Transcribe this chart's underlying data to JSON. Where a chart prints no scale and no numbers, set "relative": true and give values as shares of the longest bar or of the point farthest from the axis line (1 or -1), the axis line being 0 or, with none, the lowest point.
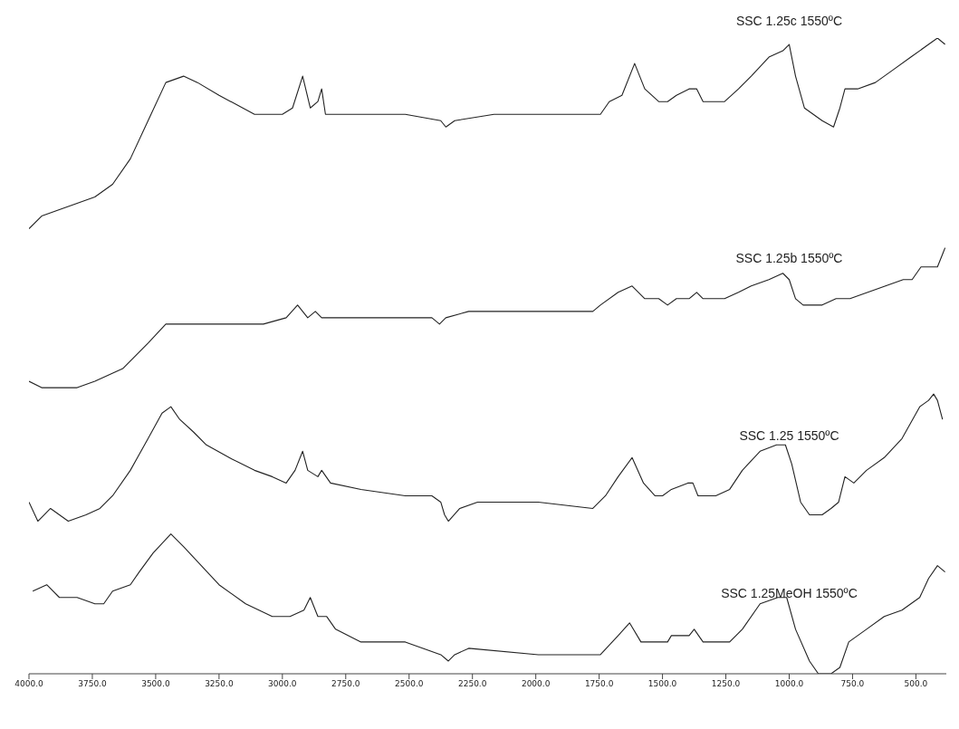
{
  "chart_data": {
    "type": "line",
    "relative": true,
    "xlim": [
      4000,
      380
    ],
    "xticks": [
      {
        "value": 4000,
        "label": "4000.0"
      },
      {
        "value": 3750,
        "label": "3750.0"
      },
      {
        "value": 3500,
        "label": "3500.0"
      },
      {
        "value": 3250,
        "label": "3250.0"
      },
      {
        "value": 3000,
        "label": "3000.0"
      },
      {
        "value": 2750,
        "label": "2750.0"
      },
      {
        "value": 2500,
        "label": "2500.0"
      },
      {
        "value": 2250,
        "label": "2250.0"
      },
      {
        "value": 2000,
        "label": "2000.0"
      },
      {
        "value": 1750,
        "label": "1750.0"
      },
      {
        "value": 1500,
        "label": "1500.0"
      },
      {
        "value": 1250,
        "label": "1250.0"
      },
      {
        "value": 1000,
        "label": "1000.0"
      },
      {
        "value": 750,
        "label": "750.0"
      },
      {
        "value": 500,
        "label": "500.0"
      }
    ],
    "marker": "none",
    "line_style": "solid",
    "tick_labels": "x",
    "series": [
      {
        "name": "SSC 1.25c 1550ºC",
        "color": "#222222",
        "x": [
          4000,
          3950,
          3880,
          3810,
          3740,
          3670,
          3600,
          3530,
          3460,
          3390,
          3335,
          3250,
          3110,
          3000,
          2960,
          2920,
          2890,
          2860,
          2845,
          2830,
          2690,
          2515,
          2375,
          2355,
          2320,
          2165,
          1990,
          1815,
          1745,
          1710,
          1660,
          1610,
          1570,
          1515,
          1480,
          1445,
          1395,
          1365,
          1340,
          1290,
          1255,
          1200,
          1150,
          1080,
          1025,
          1000,
          975,
          940,
          870,
          825,
          800,
          780,
          730,
          660,
          590,
          520,
          450,
          415,
          385
        ],
        "values": [
          0.7,
          0.72,
          0.73,
          0.74,
          0.75,
          0.77,
          0.81,
          0.87,
          0.93,
          0.94,
          0.93,
          0.91,
          0.88,
          0.88,
          0.89,
          0.94,
          0.89,
          0.9,
          0.92,
          0.88,
          0.88,
          0.88,
          0.87,
          0.86,
          0.87,
          0.88,
          0.88,
          0.88,
          0.88,
          0.9,
          0.91,
          0.96,
          0.92,
          0.9,
          0.9,
          0.91,
          0.92,
          0.92,
          0.9,
          0.9,
          0.9,
          0.92,
          0.94,
          0.97,
          0.98,
          0.99,
          0.94,
          0.89,
          0.87,
          0.86,
          0.89,
          0.92,
          0.92,
          0.93,
          0.95,
          0.97,
          0.99,
          1.0,
          0.99
        ]
      },
      {
        "name": "SSC 1.25b 1550ºC",
        "color": "#222222",
        "x": [
          4000,
          3950,
          3880,
          3810,
          3740,
          3630,
          3530,
          3460,
          3405,
          3350,
          3250,
          3075,
          2985,
          2940,
          2900,
          2870,
          2845,
          2795,
          2515,
          2410,
          2380,
          2355,
          2265,
          1990,
          1775,
          1745,
          1675,
          1620,
          1570,
          1515,
          1480,
          1445,
          1395,
          1365,
          1340,
          1290,
          1255,
          1200,
          1150,
          1080,
          1025,
          1000,
          975,
          945,
          870,
          815,
          760,
          690,
          620,
          550,
          515,
          480,
          450,
          415,
          395,
          385
        ],
        "values": [
          0.46,
          0.45,
          0.45,
          0.45,
          0.46,
          0.48,
          0.52,
          0.55,
          0.55,
          0.55,
          0.55,
          0.55,
          0.56,
          0.58,
          0.56,
          0.57,
          0.56,
          0.56,
          0.56,
          0.56,
          0.55,
          0.56,
          0.57,
          0.57,
          0.57,
          0.58,
          0.6,
          0.61,
          0.59,
          0.59,
          0.58,
          0.59,
          0.59,
          0.6,
          0.59,
          0.59,
          0.59,
          0.6,
          0.61,
          0.62,
          0.63,
          0.62,
          0.59,
          0.58,
          0.58,
          0.59,
          0.59,
          0.6,
          0.61,
          0.62,
          0.62,
          0.64,
          0.64,
          0.64,
          0.66,
          0.67
        ]
      },
      {
        "name": "SSC 1.25 1550ºC",
        "color": "#222222",
        "x": [
          4000,
          3965,
          3915,
          3845,
          3775,
          3720,
          3670,
          3600,
          3530,
          3475,
          3440,
          3405,
          3350,
          3300,
          3210,
          3110,
          3040,
          2985,
          2950,
          2920,
          2900,
          2860,
          2845,
          2810,
          2690,
          2515,
          2410,
          2375,
          2360,
          2345,
          2300,
          2230,
          1990,
          1775,
          1725,
          1675,
          1620,
          1575,
          1530,
          1500,
          1465,
          1400,
          1380,
          1360,
          1290,
          1235,
          1185,
          1115,
          1050,
          1015,
          990,
          955,
          920,
          870,
          835,
          805,
          780,
          745,
          695,
          625,
          555,
          485,
          450,
          430,
          415,
          395
        ],
        "values": [
          0.27,
          0.24,
          0.26,
          0.24,
          0.25,
          0.26,
          0.28,
          0.32,
          0.37,
          0.41,
          0.42,
          0.4,
          0.38,
          0.36,
          0.34,
          0.32,
          0.31,
          0.3,
          0.32,
          0.35,
          0.32,
          0.31,
          0.32,
          0.3,
          0.29,
          0.28,
          0.28,
          0.27,
          0.25,
          0.24,
          0.26,
          0.27,
          0.27,
          0.26,
          0.28,
          0.31,
          0.34,
          0.3,
          0.28,
          0.28,
          0.29,
          0.3,
          0.3,
          0.28,
          0.28,
          0.29,
          0.32,
          0.35,
          0.36,
          0.36,
          0.33,
          0.27,
          0.25,
          0.25,
          0.26,
          0.27,
          0.31,
          0.3,
          0.32,
          0.34,
          0.37,
          0.42,
          0.43,
          0.44,
          0.43,
          0.4
        ]
      },
      {
        "name": "SSC 1.25MeOH 1550ºC",
        "color": "#222222",
        "x": [
          3985,
          3930,
          3880,
          3810,
          3740,
          3705,
          3670,
          3600,
          3565,
          3510,
          3440,
          3390,
          3320,
          3250,
          3145,
          3040,
          2970,
          2915,
          2890,
          2860,
          2825,
          2790,
          2690,
          2515,
          2375,
          2345,
          2320,
          2265,
          1990,
          1815,
          1745,
          1675,
          1630,
          1585,
          1530,
          1480,
          1465,
          1395,
          1375,
          1340,
          1290,
          1235,
          1185,
          1115,
          1045,
          1010,
          975,
          920,
          885,
          835,
          800,
          765,
          695,
          625,
          555,
          485,
          450,
          415,
          385
        ],
        "values": [
          0.13,
          0.14,
          0.12,
          0.12,
          0.11,
          0.11,
          0.13,
          0.14,
          0.16,
          0.19,
          0.22,
          0.2,
          0.17,
          0.14,
          0.11,
          0.09,
          0.09,
          0.1,
          0.12,
          0.09,
          0.09,
          0.07,
          0.05,
          0.05,
          0.03,
          0.02,
          0.03,
          0.04,
          0.03,
          0.03,
          0.03,
          0.06,
          0.08,
          0.05,
          0.05,
          0.05,
          0.06,
          0.06,
          0.07,
          0.05,
          0.05,
          0.05,
          0.07,
          0.11,
          0.12,
          0.12,
          0.07,
          0.02,
          0.0,
          0.0,
          0.01,
          0.05,
          0.07,
          0.09,
          0.1,
          0.12,
          0.15,
          0.17,
          0.16
        ]
      }
    ]
  }
}
